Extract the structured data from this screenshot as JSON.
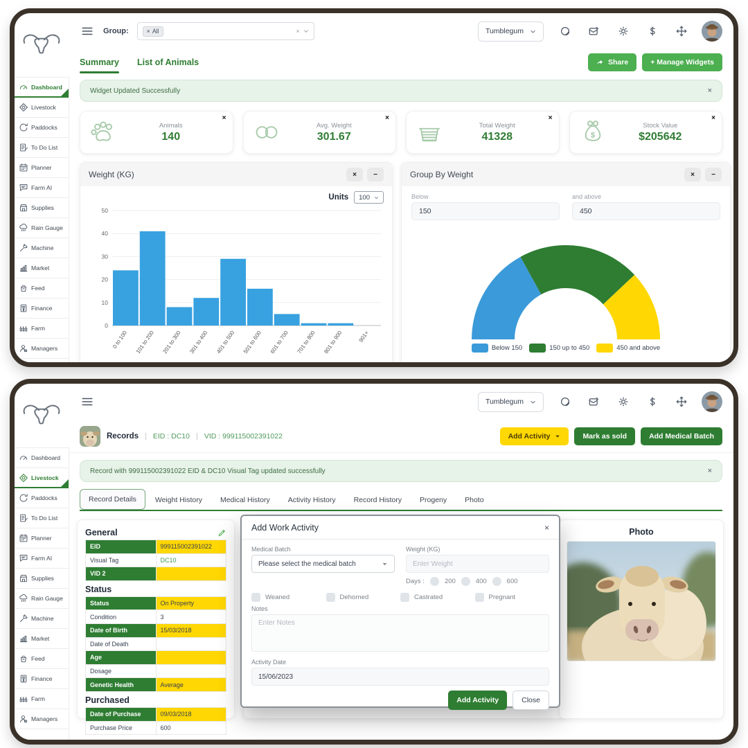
{
  "app": {
    "org": "Tumblegum",
    "accent_green": "#2e7d32",
    "button_green": "#4caf50",
    "yellow": "#ffd703"
  },
  "icons": {
    "close": "×",
    "minimize": "−",
    "clear": "×",
    "caret": "▾"
  },
  "sidebar": {
    "items": [
      {
        "label": "Dashboard",
        "icon": "dashboard-icon"
      },
      {
        "label": "Livestock",
        "icon": "livestock-icon"
      },
      {
        "label": "Paddocks",
        "icon": "paddocks-icon"
      },
      {
        "label": "To Do List",
        "icon": "todo-icon"
      },
      {
        "label": "Planner",
        "icon": "planner-icon"
      },
      {
        "label": "Farm AI",
        "icon": "farm-ai-icon"
      },
      {
        "label": "Supplies",
        "icon": "supplies-icon"
      },
      {
        "label": "Rain Gauge",
        "icon": "rain-gauge-icon"
      },
      {
        "label": "Machine",
        "icon": "machine-icon"
      },
      {
        "label": "Market",
        "icon": "market-icon"
      },
      {
        "label": "Feed",
        "icon": "feed-icon"
      },
      {
        "label": "Finance",
        "icon": "finance-icon"
      },
      {
        "label": "Farm",
        "icon": "farm-icon"
      },
      {
        "label": "Managers",
        "icon": "managers-icon"
      }
    ]
  },
  "header": {
    "icons": [
      "support-icon",
      "compose-icon",
      "settings-icon",
      "dollar-icon",
      "move-icon"
    ]
  },
  "panel1": {
    "active_sidebar": "Dashboard",
    "group_label": "Group:",
    "group_chip": "All",
    "tabs": [
      {
        "label": "Summary",
        "active": true
      },
      {
        "label": "List of Animals",
        "active": false
      }
    ],
    "share_label": "Share",
    "manage_widgets_label": "+ Manage Widgets",
    "alert": "Widget Updated Successfully",
    "stats": [
      {
        "label": "Animals",
        "value": "140",
        "icon": "paw-icon"
      },
      {
        "label": "Avg. Weight",
        "value": "301.67",
        "icon": "link-icon"
      },
      {
        "label": "Total Weight",
        "value": "41328",
        "icon": "basket-icon"
      },
      {
        "label": "Stock Value",
        "value": "$205642",
        "icon": "money-bag-icon"
      }
    ],
    "weight_widget": {
      "title": "Weight (KG)",
      "units_label": "Units",
      "units_value": "100"
    },
    "group_widget": {
      "title": "Group By Weight",
      "below_label": "Below",
      "below_value": "150",
      "above_label": "and above",
      "above_value": "450"
    }
  },
  "chart_data": [
    {
      "type": "bar",
      "title": "Weight (KG)",
      "categories": [
        "0 to 100",
        "101 to 200",
        "201 to 300",
        "301 to 400",
        "401 to 500",
        "501 to 600",
        "601 to 700",
        "701 to 800",
        "801 to 900",
        "901+"
      ],
      "values": [
        24,
        41,
        8,
        12,
        29,
        16,
        5,
        1,
        1,
        0
      ],
      "xlabel": "",
      "ylabel": "",
      "ylim": [
        0,
        50
      ],
      "ytick_step": 10,
      "bar_color": "#38a1e0",
      "grid": true,
      "label_rotation": -55
    },
    {
      "type": "gauge",
      "title": "Group By Weight",
      "segments": [
        {
          "label": "Below 150",
          "color": "#3b9ad9",
          "fraction": 0.34
        },
        {
          "label": "150 up to 450",
          "color": "#2e7d32",
          "fraction": 0.42
        },
        {
          "label": "450 and above",
          "color": "#ffd703",
          "fraction": 0.24
        }
      ],
      "legend_position": "bottom"
    }
  ],
  "panel2": {
    "active_sidebar": "Livestock",
    "records": {
      "title": "Records",
      "sep": "|",
      "eid": "EID : DC10",
      "vid": "VID : 999115002391022"
    },
    "action_buttons": {
      "add_activity": "Add Activity",
      "mark_as_sold": "Mark as sold",
      "add_medical_batch": "Add Medical Batch"
    },
    "alert": "Record with 999115002391022 EID & DC10 Visual Tag updated successfully",
    "tabs": [
      {
        "label": "Record Details",
        "active": true
      },
      {
        "label": "Weight History",
        "active": false
      },
      {
        "label": "Medical History",
        "active": false
      },
      {
        "label": "Activity History",
        "active": false
      },
      {
        "label": "Record History",
        "active": false
      },
      {
        "label": "Progeny",
        "active": false
      },
      {
        "label": "Photo",
        "active": false
      }
    ],
    "details": {
      "sections": [
        {
          "title": "General",
          "editable": true,
          "rows": [
            {
              "label": "EID",
              "value": "999115002391022",
              "highlight": true
            },
            {
              "label": "Visual Tag",
              "value": "DC10",
              "value_green": true
            },
            {
              "label": "VID 2",
              "value": "",
              "highlight": true
            }
          ]
        },
        {
          "title": "Status",
          "rows": [
            {
              "label": "Status",
              "value": "On Property",
              "highlight": true
            },
            {
              "label": "Condition",
              "value": "3"
            },
            {
              "label": "Date of Birth",
              "value": "15/03/2018",
              "highlight": true
            },
            {
              "label": "Date of Death",
              "value": ""
            },
            {
              "label": "Age",
              "value": "",
              "highlight": true
            },
            {
              "label": "Dosage",
              "value": ""
            },
            {
              "label": "Genetic Health",
              "value": "Average",
              "highlight": true
            }
          ]
        },
        {
          "title": "Purchased",
          "rows": [
            {
              "label": "Date of Purchase",
              "value": "09/03/2018",
              "highlight": true
            },
            {
              "label": "Purchase Price",
              "value": "600"
            }
          ]
        }
      ]
    },
    "modal": {
      "title": "Add Work Activity",
      "medical_batch_label": "Medical Batch",
      "medical_batch_placeholder": "Please select the medical batch",
      "weight_label": "Weight (KG)",
      "weight_placeholder": "Enter Weight",
      "days_label": "Days :",
      "days_options": [
        "200",
        "400",
        "600"
      ],
      "checkboxes": [
        "Weaned",
        "Dehorned",
        "Castrated",
        "Pregnant"
      ],
      "notes_label": "Notes",
      "notes_placeholder": "Enter Notes",
      "activity_date_label": "Activity Date",
      "activity_date_value": "15/06/2023",
      "submit_label": "Add Activity",
      "close_label": "Close"
    },
    "photo": {
      "title": "Photo"
    }
  }
}
